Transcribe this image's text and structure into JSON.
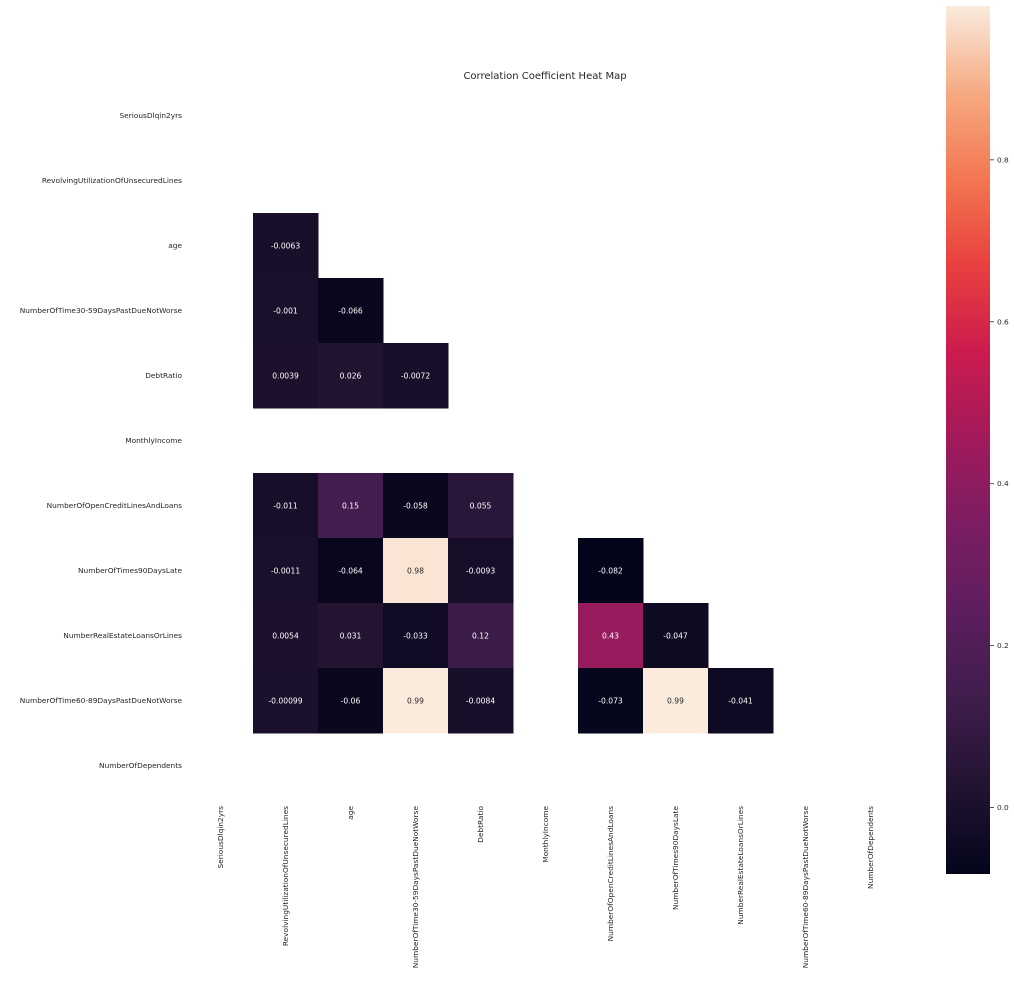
{
  "chart_data": {
    "type": "heatmap",
    "title": "Correlation Coefficient Heat Map",
    "variables": [
      "SeriousDlqin2yrs",
      "RevolvingUtilizationOfUnsecuredLines",
      "age",
      "NumberOfTime30-59DaysPastDueNotWorse",
      "DebtRatio",
      "MonthlyIncome",
      "NumberOfOpenCreditLinesAndLoans",
      "NumberOfTimes90DaysLate",
      "NumberRealEstateLoansOrLines",
      "NumberOfTime60-89DaysPastDueNotWorse",
      "NumberOfDependents"
    ],
    "matrix": [
      [
        null,
        null,
        null,
        null,
        null,
        null,
        null,
        null,
        null,
        null,
        null
      ],
      [
        null,
        null,
        null,
        null,
        null,
        null,
        null,
        null,
        null,
        null,
        null
      ],
      [
        null,
        -0.0063,
        null,
        null,
        null,
        null,
        null,
        null,
        null,
        null,
        null
      ],
      [
        null,
        -0.001,
        -0.066,
        null,
        null,
        null,
        null,
        null,
        null,
        null,
        null
      ],
      [
        null,
        0.0039,
        0.026,
        -0.0072,
        null,
        null,
        null,
        null,
        null,
        null,
        null
      ],
      [
        null,
        null,
        null,
        null,
        null,
        null,
        null,
        null,
        null,
        null,
        null
      ],
      [
        null,
        -0.011,
        0.15,
        -0.058,
        0.055,
        null,
        null,
        null,
        null,
        null,
        null
      ],
      [
        null,
        -0.0011,
        -0.064,
        0.98,
        -0.0093,
        null,
        -0.082,
        null,
        null,
        null,
        null
      ],
      [
        null,
        0.0054,
        0.031,
        -0.033,
        0.12,
        null,
        0.43,
        -0.047,
        null,
        null,
        null
      ],
      [
        null,
        -0.00099,
        -0.06,
        0.99,
        -0.0084,
        null,
        -0.073,
        0.99,
        -0.041,
        null,
        null
      ],
      [
        null,
        null,
        null,
        null,
        null,
        null,
        null,
        null,
        null,
        null,
        null
      ]
    ],
    "labels": [
      [
        null,
        null,
        null,
        null,
        null,
        null,
        null,
        null,
        null,
        null,
        null
      ],
      [
        null,
        null,
        null,
        null,
        null,
        null,
        null,
        null,
        null,
        null,
        null
      ],
      [
        null,
        "-0.0063",
        null,
        null,
        null,
        null,
        null,
        null,
        null,
        null,
        null
      ],
      [
        null,
        "-0.001",
        "-0.066",
        null,
        null,
        null,
        null,
        null,
        null,
        null,
        null
      ],
      [
        null,
        "0.0039",
        "0.026",
        "-0.0072",
        null,
        null,
        null,
        null,
        null,
        null,
        null
      ],
      [
        null,
        null,
        null,
        null,
        null,
        null,
        null,
        null,
        null,
        null,
        null
      ],
      [
        null,
        "-0.011",
        "0.15",
        "-0.058",
        "0.055",
        null,
        null,
        null,
        null,
        null,
        null
      ],
      [
        null,
        "-0.0011",
        "-0.064",
        "0.98",
        "-0.0093",
        null,
        "-0.082",
        null,
        null,
        null,
        null
      ],
      [
        null,
        "0.0054",
        "0.031",
        "-0.033",
        "0.12",
        null,
        "0.43",
        "-0.047",
        null,
        null,
        null
      ],
      [
        null,
        "-0.00099",
        "-0.06",
        "0.99",
        "-0.0084",
        null,
        "-0.073",
        "0.99",
        "-0.041",
        null,
        null
      ],
      [
        null,
        null,
        null,
        null,
        null,
        null,
        null,
        null,
        null,
        null,
        null
      ]
    ],
    "colorbar": {
      "colormap": "rocket",
      "vmin": -0.082,
      "vmax": 0.99,
      "ticks": [
        0.0,
        0.2,
        0.4,
        0.6,
        0.8
      ],
      "tick_labels": [
        "0.0",
        "0.2",
        "0.4",
        "0.6",
        "0.8"
      ]
    },
    "mask": "upper-triangle and diagonal; rows/columns with missing values blank",
    "grid": false
  }
}
